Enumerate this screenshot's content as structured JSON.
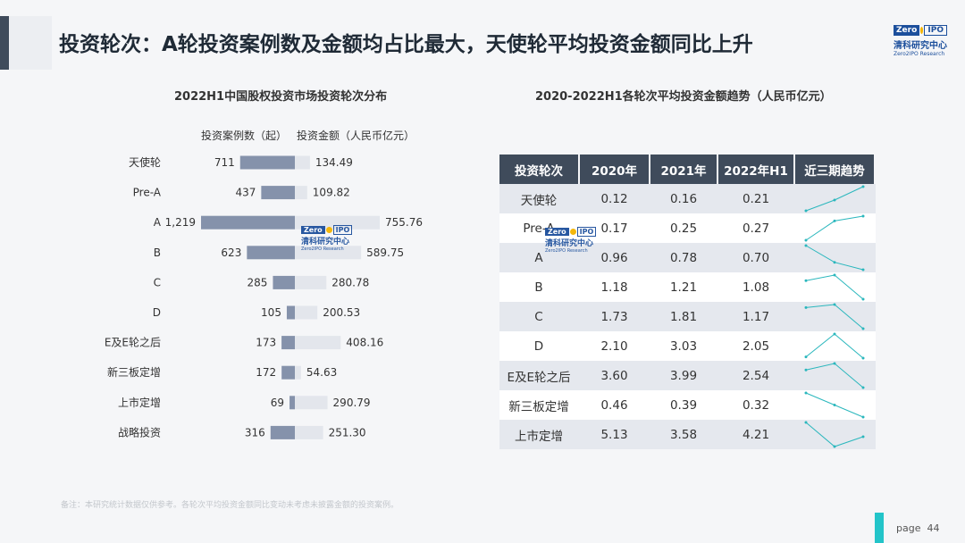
{
  "header": {
    "title": "投资轮次：A轮投资案例数及金额均占比最大，天使轮平均投资金额同比上升",
    "logo_text": "Zero",
    "logo_ipo": "IPO",
    "logo_cn": "清科研究中心",
    "logo_en": "Zero2IPO Research"
  },
  "colors": {
    "dark": "#3f4b5b",
    "bar_count": "#8592ab",
    "bar_amount": "#e3e6ec",
    "spark": "#2ab7bd",
    "accent": "#23c4c9"
  },
  "chart_data": [
    {
      "type": "bar",
      "title": "2022H1中国股权投资市场投资轮次分布",
      "categories": [
        "天使轮",
        "Pre-A",
        "A",
        "B",
        "C",
        "D",
        "E及E轮之后",
        "新三板定增",
        "上市定增",
        "战略投资"
      ],
      "series": [
        {
          "name": "投资案例数（起）",
          "values": [
            711,
            437,
            1219,
            623,
            285,
            105,
            173,
            172,
            69,
            316
          ],
          "labels": [
            "711",
            "437",
            "1,219",
            "623",
            "285",
            "105",
            "173",
            "172",
            "69",
            "316"
          ]
        },
        {
          "name": "投资金额（人民币亿元）",
          "values": [
            134.49,
            109.82,
            755.76,
            589.75,
            280.78,
            200.53,
            408.16,
            54.63,
            290.79,
            251.3
          ],
          "labels": [
            "134.49",
            "109.82",
            "755.76",
            "589.75",
            "280.78",
            "200.53",
            "408.16",
            "54.63",
            "290.79",
            "251.30"
          ]
        }
      ],
      "legend": [
        "投资案例数（起）",
        "投资金额（人民币亿元）"
      ]
    },
    {
      "type": "table",
      "title": "2020-2022H1各轮次平均投资金额趋势（人民币亿元）",
      "columns": [
        "投资轮次",
        "2020年",
        "2021年",
        "2022年H1",
        "近三期趋势"
      ],
      "rows": [
        {
          "round": "天使轮",
          "v2020": "0.12",
          "v2021": "0.16",
          "v2022": "0.21"
        },
        {
          "round": "Pre-A",
          "v2020": "0.17",
          "v2021": "0.25",
          "v2022": "0.27"
        },
        {
          "round": "A",
          "v2020": "0.96",
          "v2021": "0.78",
          "v2022": "0.70"
        },
        {
          "round": "B",
          "v2020": "1.18",
          "v2021": "1.21",
          "v2022": "1.08"
        },
        {
          "round": "C",
          "v2020": "1.73",
          "v2021": "1.81",
          "v2022": "1.17"
        },
        {
          "round": "D",
          "v2020": "2.10",
          "v2021": "3.03",
          "v2022": "2.05"
        },
        {
          "round": "E及E轮之后",
          "v2020": "3.60",
          "v2021": "3.99",
          "v2022": "2.54"
        },
        {
          "round": "新三板定增",
          "v2020": "0.46",
          "v2021": "0.39",
          "v2022": "0.32"
        },
        {
          "round": "上市定增",
          "v2020": "5.13",
          "v2021": "3.58",
          "v2022": "4.21"
        }
      ]
    }
  ],
  "footnote": "备注：本研究统计数据仅供参考。各轮次平均投资金额同比变动未考虑未披露金额的投资案例。",
  "page": {
    "label": "page",
    "number": "44"
  }
}
